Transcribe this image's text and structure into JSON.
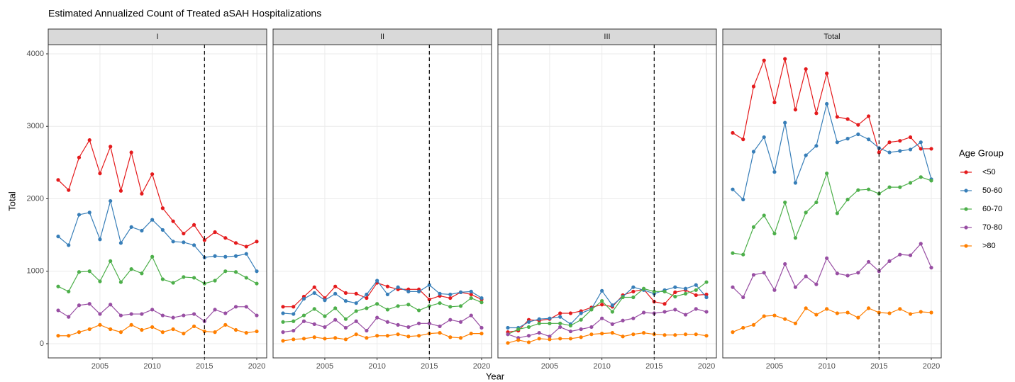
{
  "chart_data": {
    "type": "line",
    "title": "Estimated Annualized Count of Treated aSAH Hospitalizations",
    "x_label": "Year",
    "y_label": "Total",
    "legend_title": "Age Group",
    "grid": true,
    "x": [
      2001,
      2002,
      2003,
      2004,
      2005,
      2006,
      2007,
      2008,
      2009,
      2010,
      2011,
      2012,
      2013,
      2014,
      2015,
      2016,
      2017,
      2018,
      2019,
      2020
    ],
    "xlim": [
      2000.05,
      2020.95
    ],
    "xticks": [
      2005,
      2010,
      2015,
      2020
    ],
    "ylim": [
      -196,
      4127
    ],
    "yticks": [
      0,
      1000,
      2000,
      3000,
      4000
    ],
    "vline": 2015,
    "series": [
      {
        "name": "<50",
        "color": "#e41a1c"
      },
      {
        "name": "50-60",
        "color": "#377eb8"
      },
      {
        "name": "60-70",
        "color": "#4daf4a"
      },
      {
        "name": "70-80",
        "color": "#984ea3"
      },
      {
        "name": ">80",
        "color": "#ff7f00"
      }
    ],
    "facets": [
      {
        "label": "I",
        "series": [
          {
            "values": [
              2260,
              2120,
              2570,
              2810,
              2350,
              2720,
              2110,
              2640,
              2070,
              2340,
              1870,
              1690,
              1520,
              1640,
              1430,
              1540,
              1460,
              1390,
              1340,
              1410
            ]
          },
          {
            "values": [
              1480,
              1360,
              1780,
              1810,
              1440,
              1970,
              1390,
              1610,
              1560,
              1710,
              1570,
              1410,
              1400,
              1360,
              1190,
              1210,
              1200,
              1210,
              1240,
              1000
            ]
          },
          {
            "values": [
              790,
              720,
              990,
              1000,
              860,
              1140,
              850,
              1030,
              970,
              1200,
              890,
              840,
              920,
              910,
              830,
              870,
              1000,
              990,
              910,
              830
            ]
          },
          {
            "values": [
              460,
              370,
              530,
              550,
              410,
              540,
              390,
              410,
              410,
              470,
              390,
              360,
              390,
              410,
              310,
              470,
              420,
              510,
              510,
              390
            ]
          },
          {
            "values": [
              110,
              110,
              160,
              200,
              260,
              200,
              160,
              260,
              190,
              230,
              160,
              200,
              140,
              240,
              170,
              160,
              260,
              190,
              150,
              170
            ]
          }
        ]
      },
      {
        "label": "II",
        "series": [
          {
            "values": [
              510,
              510,
              650,
              780,
              630,
              790,
              700,
              690,
              630,
              840,
              790,
              750,
              750,
              750,
              610,
              660,
              630,
              710,
              680,
              610
            ]
          },
          {
            "values": [
              420,
              410,
              620,
              700,
              600,
              690,
              590,
              560,
              680,
              870,
              680,
              780,
              720,
              720,
              810,
              690,
              680,
              710,
              720,
              630
            ]
          },
          {
            "values": [
              300,
              310,
              390,
              480,
              380,
              490,
              340,
              450,
              490,
              550,
              470,
              520,
              540,
              460,
              520,
              560,
              510,
              520,
              630,
              570
            ]
          },
          {
            "values": [
              160,
              180,
              310,
              270,
              230,
              330,
              220,
              310,
              180,
              360,
              300,
              260,
              230,
              280,
              280,
              240,
              330,
              300,
              390,
              220
            ]
          },
          {
            "values": [
              40,
              60,
              70,
              90,
              70,
              80,
              60,
              130,
              80,
              110,
              110,
              130,
              100,
              110,
              140,
              150,
              90,
              80,
              140,
              140
            ]
          }
        ]
      },
      {
        "label": "III",
        "series": [
          {
            "values": [
              160,
              180,
              330,
              320,
              340,
              420,
              420,
              450,
              500,
              540,
              510,
              670,
              720,
              750,
              580,
              550,
              710,
              740,
              670,
              680
            ]
          },
          {
            "values": [
              220,
              220,
              300,
              340,
              350,
              370,
              270,
              420,
              480,
              730,
              530,
              650,
              780,
              740,
              690,
              740,
              780,
              760,
              810,
              640
            ]
          },
          {
            "values": [
              130,
              200,
              230,
              280,
              280,
              280,
              250,
              330,
              470,
              590,
              440,
              640,
              640,
              760,
              720,
              720,
              650,
              690,
              740,
              850
            ]
          },
          {
            "values": [
              130,
              80,
              110,
              150,
              100,
              230,
              170,
              200,
              230,
              350,
              270,
              320,
              350,
              430,
              420,
              440,
              470,
              400,
              480,
              440
            ]
          },
          {
            "values": [
              10,
              50,
              20,
              70,
              60,
              70,
              70,
              90,
              130,
              140,
              150,
              100,
              130,
              150,
              130,
              120,
              120,
              130,
              130,
              110
            ]
          }
        ]
      },
      {
        "label": "Total",
        "series": [
          {
            "values": [
              2910,
              2820,
              3550,
              3910,
              3330,
              3930,
              3230,
              3790,
              3180,
              3730,
              3130,
              3100,
              3020,
              3140,
              2640,
              2780,
              2800,
              2850,
              2690,
              2690
            ]
          },
          {
            "values": [
              2130,
              1990,
              2650,
              2850,
              2370,
              3050,
              2220,
              2600,
              2730,
              3310,
              2780,
              2830,
              2890,
              2820,
              2700,
              2640,
              2660,
              2680,
              2780,
              2270
            ]
          },
          {
            "values": [
              1250,
              1230,
              1610,
              1770,
              1520,
              1950,
              1460,
              1810,
              1950,
              2350,
              1800,
              1990,
              2120,
              2130,
              2070,
              2160,
              2160,
              2220,
              2300,
              2250
            ]
          },
          {
            "values": [
              780,
              640,
              950,
              980,
              740,
              1100,
              780,
              930,
              820,
              1180,
              970,
              940,
              980,
              1130,
              1000,
              1140,
              1230,
              1220,
              1380,
              1050
            ]
          },
          {
            "values": [
              160,
              220,
              260,
              380,
              390,
              340,
              280,
              490,
              400,
              480,
              420,
              430,
              360,
              490,
              430,
              420,
              480,
              410,
              440,
              430
            ]
          }
        ]
      }
    ]
  }
}
